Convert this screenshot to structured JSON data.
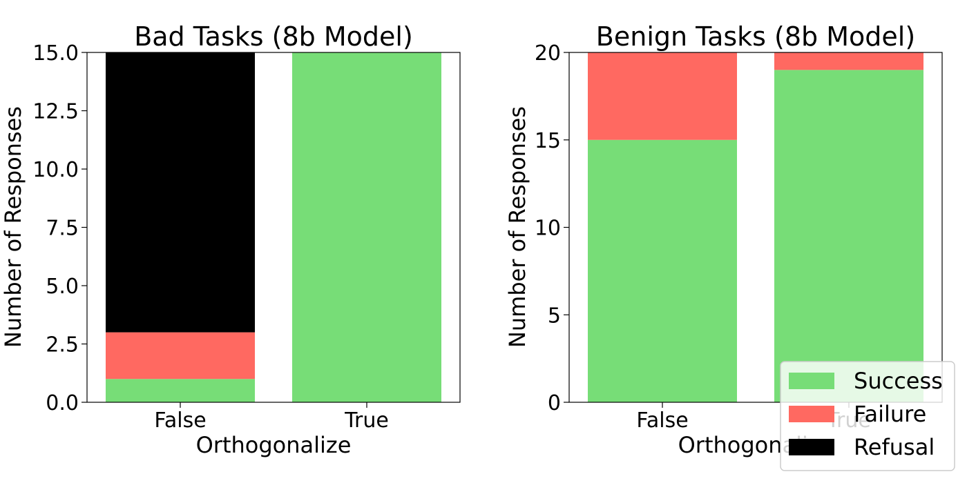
{
  "chart_data": [
    {
      "type": "bar",
      "stacked": true,
      "title": "Bad Tasks (8b Model)",
      "xlabel": "Orthogonalize",
      "ylabel": "Number of Responses",
      "categories": [
        "False",
        "True"
      ],
      "ylim": [
        0,
        15
      ],
      "yticks": [
        0,
        2.5,
        5,
        7.5,
        10,
        12.5,
        15
      ],
      "ytick_labels": [
        "0.0",
        "2.5",
        "5.0",
        "7.5",
        "10.0",
        "12.5",
        "15.0"
      ],
      "series": [
        {
          "name": "Success",
          "color": "#77dd77",
          "values": [
            1,
            15
          ]
        },
        {
          "name": "Failure",
          "color": "#ff6961",
          "values": [
            2,
            0
          ]
        },
        {
          "name": "Refusal",
          "color": "#000000",
          "values": [
            12,
            0
          ]
        }
      ]
    },
    {
      "type": "bar",
      "stacked": true,
      "title": "Benign Tasks (8b Model)",
      "xlabel": "Orthogonalize",
      "ylabel": "Number of Responses",
      "categories": [
        "False",
        "True"
      ],
      "ylim": [
        0,
        20
      ],
      "yticks": [
        0,
        5,
        10,
        15,
        20
      ],
      "ytick_labels": [
        "0",
        "5",
        "10",
        "15",
        "20"
      ],
      "legend": "lower-right",
      "series": [
        {
          "name": "Success",
          "color": "#77dd77",
          "values": [
            15,
            19
          ]
        },
        {
          "name": "Failure",
          "color": "#ff6961",
          "values": [
            5,
            1
          ]
        },
        {
          "name": "Refusal",
          "color": "#000000",
          "values": [
            0,
            0
          ]
        }
      ]
    }
  ]
}
